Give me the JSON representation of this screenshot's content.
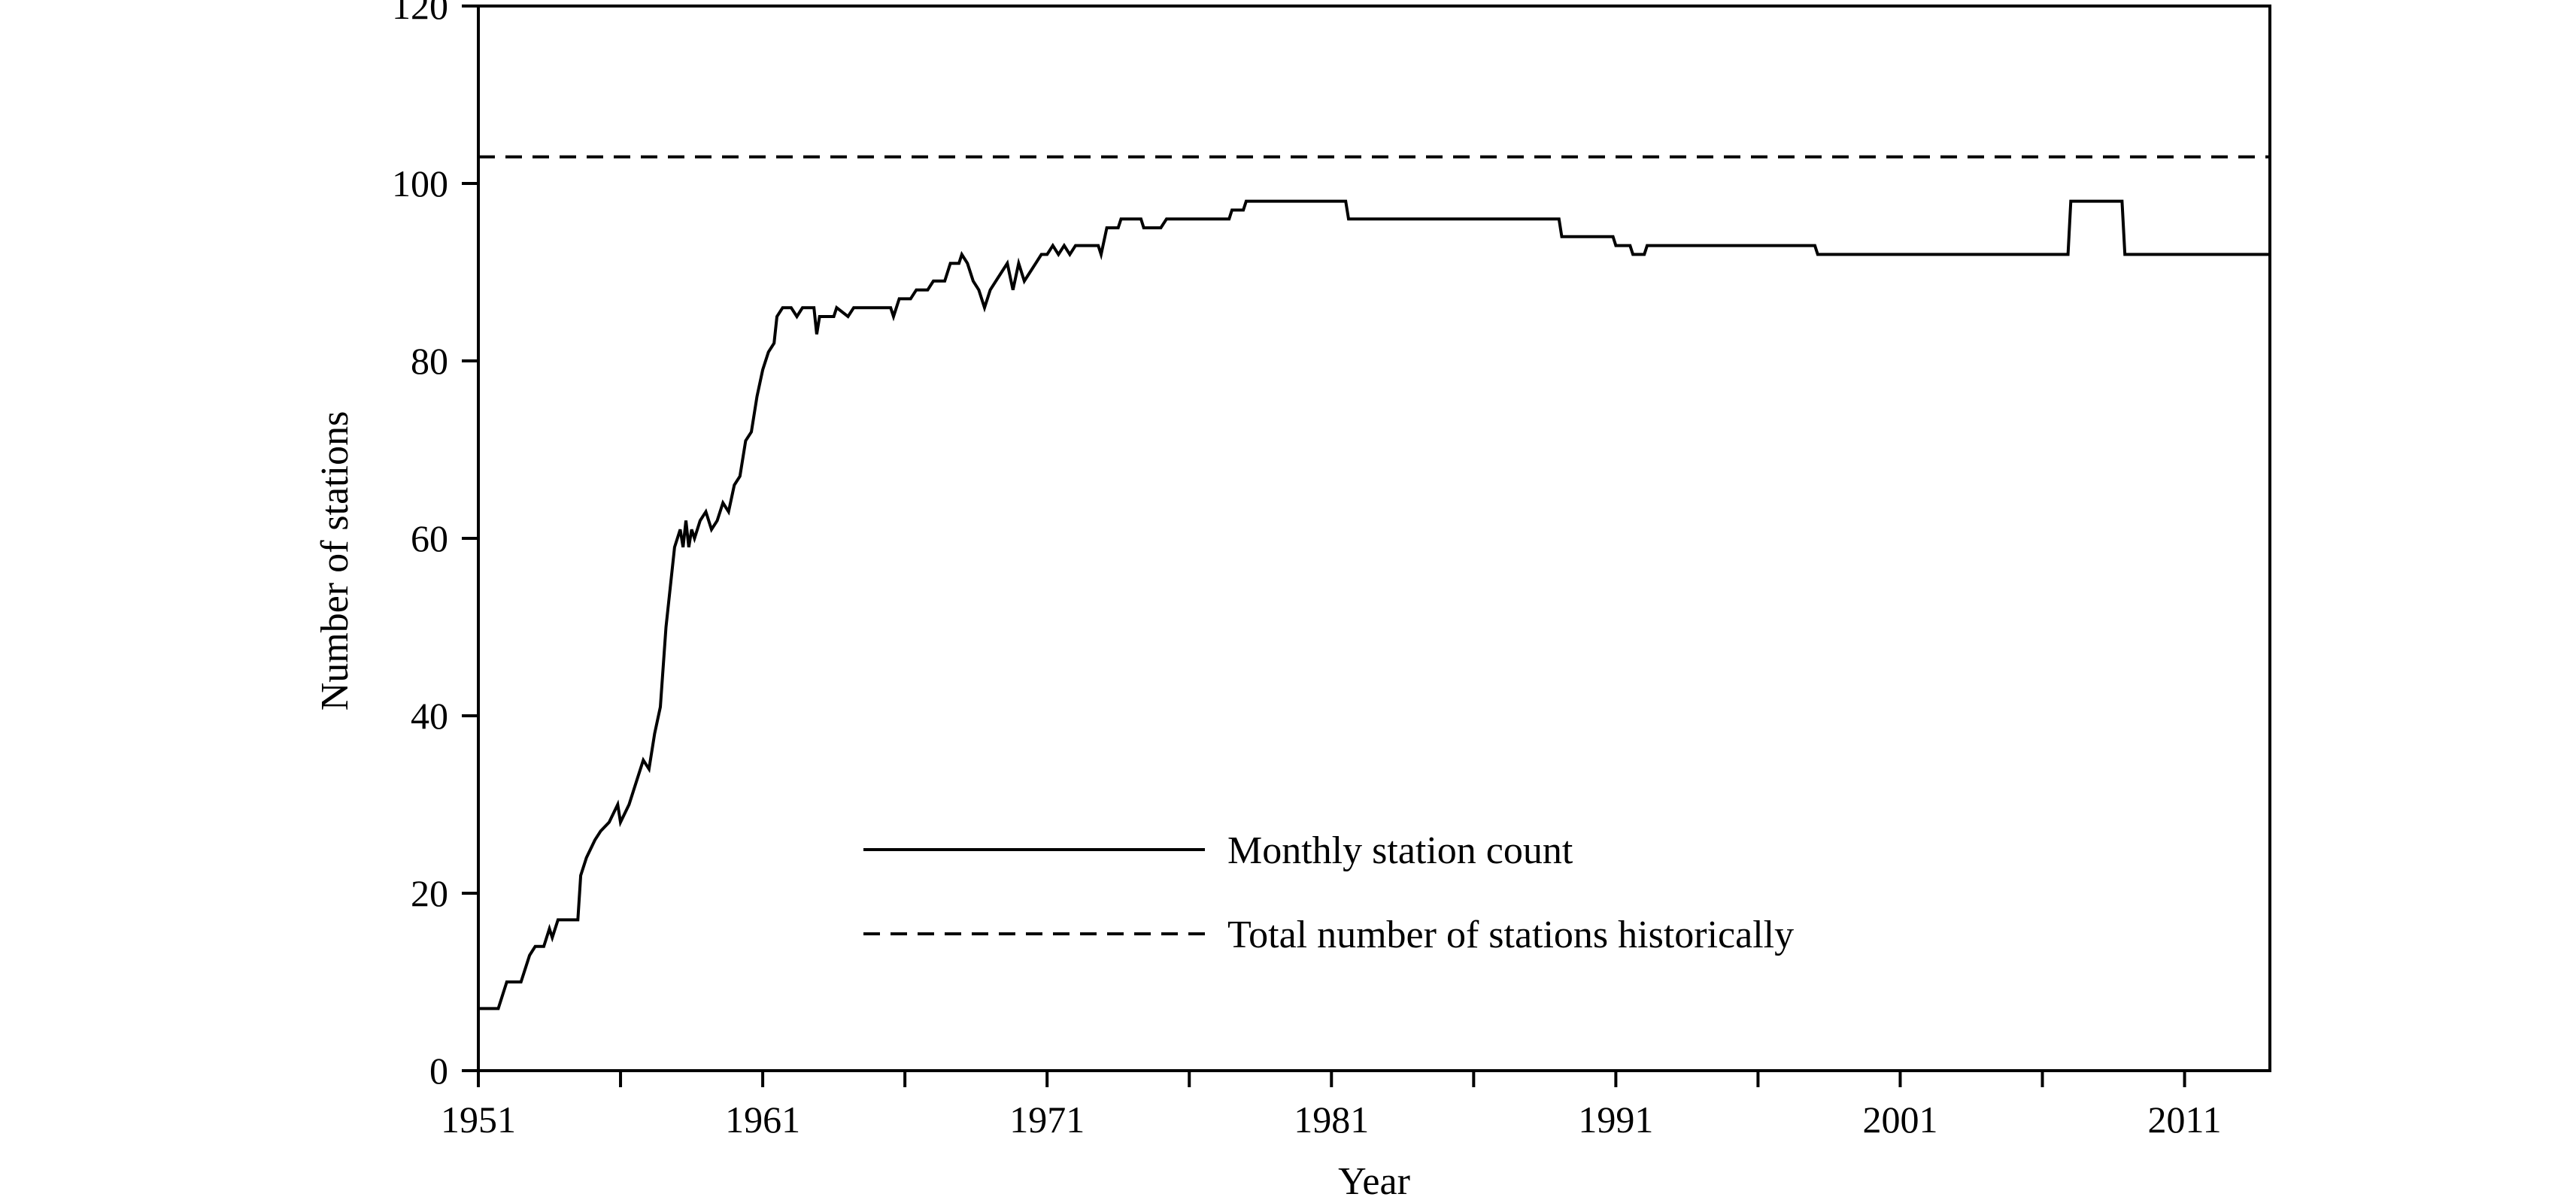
{
  "chart_data": {
    "type": "line",
    "title": "",
    "xlabel": "Year",
    "ylabel": "Number of stations",
    "xlim": [
      1951,
      2014
    ],
    "ylim": [
      0,
      120
    ],
    "x_ticks": [
      1951,
      1961,
      1971,
      1981,
      1991,
      2001,
      2011
    ],
    "x_minor_ticks": [
      1956,
      1966,
      1976,
      1986,
      1996,
      2006
    ],
    "y_ticks": [
      0,
      20,
      40,
      60,
      80,
      100,
      120
    ],
    "grid": false,
    "legend_position": "center-bottom",
    "series": [
      {
        "name": "Monthly station count",
        "style": "solid",
        "color": "#000000",
        "points": [
          [
            1951.0,
            7
          ],
          [
            1951.7,
            7
          ],
          [
            1951.9,
            9
          ],
          [
            1952.0,
            10
          ],
          [
            1952.5,
            10
          ],
          [
            1952.6,
            11
          ],
          [
            1952.8,
            13
          ],
          [
            1953.0,
            14
          ],
          [
            1953.3,
            14
          ],
          [
            1953.5,
            16
          ],
          [
            1953.6,
            15
          ],
          [
            1953.8,
            17
          ],
          [
            1954.5,
            17
          ],
          [
            1954.6,
            22
          ],
          [
            1954.8,
            24
          ],
          [
            1955.1,
            26
          ],
          [
            1955.3,
            27
          ],
          [
            1955.6,
            28
          ],
          [
            1955.9,
            30
          ],
          [
            1956.0,
            28
          ],
          [
            1956.3,
            30
          ],
          [
            1956.6,
            33
          ],
          [
            1956.8,
            35
          ],
          [
            1957.0,
            34
          ],
          [
            1957.2,
            38
          ],
          [
            1957.4,
            41
          ],
          [
            1957.6,
            50
          ],
          [
            1957.8,
            56
          ],
          [
            1957.9,
            59
          ],
          [
            1958.1,
            61
          ],
          [
            1958.2,
            59
          ],
          [
            1958.3,
            62
          ],
          [
            1958.4,
            59
          ],
          [
            1958.5,
            61
          ],
          [
            1958.6,
            60
          ],
          [
            1958.8,
            62
          ],
          [
            1959.0,
            63
          ],
          [
            1959.2,
            61
          ],
          [
            1959.4,
            62
          ],
          [
            1959.6,
            64
          ],
          [
            1959.8,
            63
          ],
          [
            1960.0,
            66
          ],
          [
            1960.2,
            67
          ],
          [
            1960.4,
            71
          ],
          [
            1960.6,
            72
          ],
          [
            1960.8,
            76
          ],
          [
            1961.0,
            79
          ],
          [
            1961.2,
            81
          ],
          [
            1961.4,
            82
          ],
          [
            1961.5,
            85
          ],
          [
            1961.7,
            86
          ],
          [
            1962.0,
            86
          ],
          [
            1962.2,
            85
          ],
          [
            1962.4,
            86
          ],
          [
            1962.8,
            86
          ],
          [
            1962.9,
            83
          ],
          [
            1963.0,
            85
          ],
          [
            1963.5,
            85
          ],
          [
            1963.6,
            86
          ],
          [
            1964.0,
            85
          ],
          [
            1964.2,
            86
          ],
          [
            1965.5,
            86
          ],
          [
            1965.6,
            85
          ],
          [
            1965.8,
            87
          ],
          [
            1966.2,
            87
          ],
          [
            1966.4,
            88
          ],
          [
            1966.8,
            88
          ],
          [
            1967.0,
            89
          ],
          [
            1967.4,
            89
          ],
          [
            1967.6,
            91
          ],
          [
            1967.9,
            91
          ],
          [
            1968.0,
            92
          ],
          [
            1968.2,
            91
          ],
          [
            1968.4,
            89
          ],
          [
            1968.6,
            88
          ],
          [
            1968.8,
            86
          ],
          [
            1969.0,
            88
          ],
          [
            1969.2,
            89
          ],
          [
            1969.4,
            90
          ],
          [
            1969.6,
            91
          ],
          [
            1969.8,
            88
          ],
          [
            1970.0,
            91
          ],
          [
            1970.2,
            89
          ],
          [
            1970.4,
            90
          ],
          [
            1970.6,
            91
          ],
          [
            1970.8,
            92
          ],
          [
            1971.0,
            92
          ],
          [
            1971.2,
            93
          ],
          [
            1971.4,
            92
          ],
          [
            1971.6,
            93
          ],
          [
            1971.8,
            92
          ],
          [
            1972.0,
            93
          ],
          [
            1972.8,
            93
          ],
          [
            1972.9,
            92
          ],
          [
            1973.1,
            95
          ],
          [
            1973.5,
            95
          ],
          [
            1973.6,
            96
          ],
          [
            1974.3,
            96
          ],
          [
            1974.4,
            95
          ],
          [
            1975.0,
            95
          ],
          [
            1975.2,
            96
          ],
          [
            1977.4,
            96
          ],
          [
            1977.5,
            97
          ],
          [
            1977.9,
            97
          ],
          [
            1978.0,
            98
          ],
          [
            1981.5,
            98
          ],
          [
            1981.6,
            96
          ],
          [
            1989.0,
            96
          ],
          [
            1989.1,
            94
          ],
          [
            1990.9,
            94
          ],
          [
            1991.0,
            93
          ],
          [
            1991.5,
            93
          ],
          [
            1991.6,
            92
          ],
          [
            1992.0,
            92
          ],
          [
            1992.1,
            93
          ],
          [
            1998.0,
            93
          ],
          [
            1998.1,
            92
          ],
          [
            2006.9,
            92
          ],
          [
            2007.0,
            98
          ],
          [
            2008.8,
            98
          ],
          [
            2008.9,
            92
          ],
          [
            2014.0,
            92
          ]
        ]
      },
      {
        "name": "Total number of stations historically",
        "style": "dashed",
        "color": "#000000",
        "points": [
          [
            1951.0,
            103
          ],
          [
            2014.0,
            103
          ]
        ]
      }
    ]
  }
}
